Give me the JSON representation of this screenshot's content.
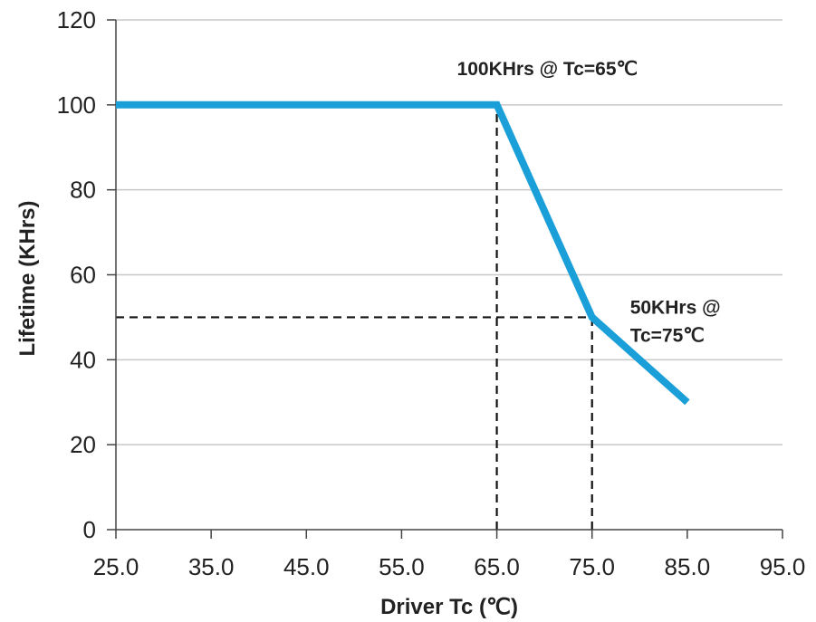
{
  "chart_data": {
    "type": "line",
    "title": "",
    "xlabel": "Driver Tc (℃)",
    "ylabel": "Lifetime (KHrs)",
    "xlim": [
      25,
      95
    ],
    "ylim": [
      0,
      120
    ],
    "x_ticks": [
      "25.0",
      "35.0",
      "45.0",
      "55.0",
      "65.0",
      "75.0",
      "85.0",
      "95.0"
    ],
    "y_ticks": [
      "0",
      "20",
      "40",
      "60",
      "80",
      "100",
      "120"
    ],
    "grid": "horizontal",
    "legend": "none",
    "series": [
      {
        "color": "#1a9fd8",
        "points": [
          {
            "x": 25,
            "y": 100
          },
          {
            "x": 65,
            "y": 100
          },
          {
            "x": 75,
            "y": 50
          },
          {
            "x": 85,
            "y": 30
          }
        ]
      }
    ],
    "reference_lines": [
      {
        "kind": "vertical",
        "x": 65,
        "y_from": 0,
        "y_to": 100
      },
      {
        "kind": "vertical",
        "x": 75,
        "y_from": 0,
        "y_to": 50
      },
      {
        "kind": "horizontal",
        "y": 50,
        "x_from": 25,
        "x_to": 75
      }
    ],
    "annotations": [
      {
        "lines": [
          "100KHrs @ Tc=65℃"
        ],
        "x": 65,
        "y": 100
      },
      {
        "lines": [
          "50KHrs @",
          "Tc=75℃"
        ],
        "x": 75,
        "y": 50
      }
    ]
  }
}
